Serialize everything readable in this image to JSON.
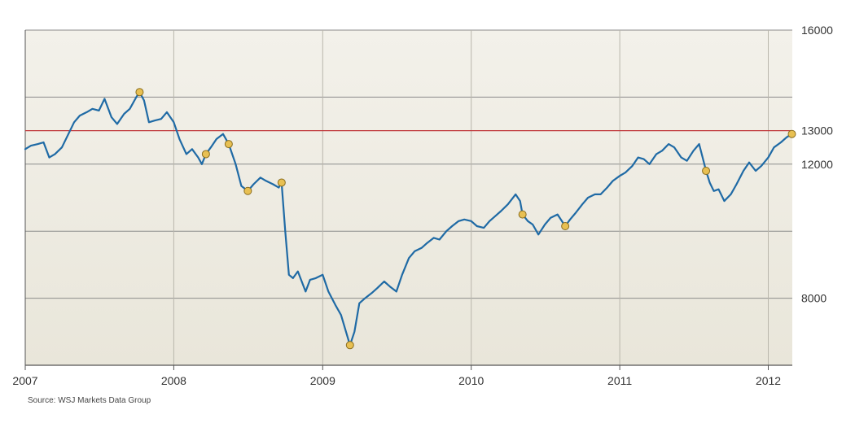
{
  "chart_data": {
    "type": "line",
    "x_type": "date",
    "xlim": [
      "2007-01-01",
      "2012-02-29"
    ],
    "ylim": [
      6000,
      16000
    ],
    "x_tick_labels": [
      "2007",
      "2008",
      "2009",
      "2010",
      "2011",
      "2012"
    ],
    "x_tick_dates": [
      "2007-01-01",
      "2008-01-01",
      "2009-01-01",
      "2010-01-01",
      "2011-01-01",
      "2012-01-01"
    ],
    "y_gridlines": [
      8000,
      10000,
      12000,
      14000
    ],
    "y_tick_labels": [
      {
        "value": 16000,
        "label": "16000"
      },
      {
        "value": 13000,
        "label": "13000"
      },
      {
        "value": 12000,
        "label": "12000"
      },
      {
        "value": 8000,
        "label": "8000"
      }
    ],
    "reference_line": {
      "value": 13000,
      "color": "#c0393b"
    },
    "grid": true,
    "colors": {
      "line": "#1f6aa5",
      "marker_fill": "#e8c052",
      "marker_stroke": "#8a6d1e",
      "plot_bg_top": "#f3f1ea",
      "plot_bg_bottom": "#e9e6da",
      "grid": "#8c8c8c"
    },
    "series": [
      {
        "x": [
          "2007-01-01",
          "2007-01-15",
          "2007-02-01",
          "2007-02-15",
          "2007-03-01",
          "2007-03-15",
          "2007-04-01",
          "2007-04-15",
          "2007-05-01",
          "2007-05-15",
          "2007-06-01",
          "2007-06-15",
          "2007-07-01",
          "2007-07-15",
          "2007-08-01",
          "2007-08-15",
          "2007-09-01",
          "2007-09-15",
          "2007-10-01",
          "2007-10-09",
          "2007-10-20",
          "2007-11-01",
          "2007-11-15",
          "2007-12-01",
          "2007-12-15",
          "2008-01-01",
          "2008-01-15",
          "2008-02-01",
          "2008-02-15",
          "2008-03-01",
          "2008-03-10",
          "2008-03-20",
          "2008-04-01",
          "2008-04-15",
          "2008-05-01",
          "2008-05-15",
          "2008-06-01",
          "2008-06-15",
          "2008-07-01",
          "2008-07-15",
          "2008-08-01",
          "2008-08-15",
          "2008-09-01",
          "2008-09-15",
          "2008-09-22",
          "2008-10-01",
          "2008-10-10",
          "2008-10-20",
          "2008-11-01",
          "2008-11-20",
          "2008-12-01",
          "2008-12-15",
          "2009-01-01",
          "2009-01-15",
          "2009-02-01",
          "2009-02-15",
          "2009-03-09",
          "2009-03-20",
          "2009-04-01",
          "2009-04-15",
          "2009-05-01",
          "2009-05-15",
          "2009-06-01",
          "2009-06-15",
          "2009-07-01",
          "2009-07-15",
          "2009-08-01",
          "2009-08-15",
          "2009-09-01",
          "2009-09-15",
          "2009-10-01",
          "2009-10-15",
          "2009-11-01",
          "2009-11-15",
          "2009-12-01",
          "2009-12-15",
          "2010-01-01",
          "2010-01-15",
          "2010-02-01",
          "2010-02-15",
          "2010-03-01",
          "2010-03-15",
          "2010-04-01",
          "2010-04-20",
          "2010-05-01",
          "2010-05-07",
          "2010-05-20",
          "2010-06-01",
          "2010-06-15",
          "2010-07-01",
          "2010-07-15",
          "2010-08-01",
          "2010-08-20",
          "2010-09-01",
          "2010-09-15",
          "2010-10-01",
          "2010-10-15",
          "2010-11-01",
          "2010-11-15",
          "2010-12-01",
          "2010-12-15",
          "2011-01-01",
          "2011-01-15",
          "2011-02-01",
          "2011-02-15",
          "2011-03-01",
          "2011-03-15",
          "2011-04-01",
          "2011-04-15",
          "2011-05-01",
          "2011-05-15",
          "2011-06-01",
          "2011-06-15",
          "2011-07-01",
          "2011-07-15",
          "2011-08-01",
          "2011-08-10",
          "2011-08-20",
          "2011-09-01",
          "2011-09-15",
          "2011-10-01",
          "2011-10-15",
          "2011-11-01",
          "2011-11-15",
          "2011-12-01",
          "2011-12-15",
          "2012-01-01",
          "2012-01-15",
          "2012-02-01",
          "2012-02-15",
          "2012-02-28"
        ],
        "y": [
          12450,
          12550,
          12600,
          12650,
          12200,
          12300,
          12500,
          12850,
          13250,
          13450,
          13550,
          13650,
          13600,
          13950,
          13400,
          13200,
          13500,
          13650,
          14000,
          14150,
          13900,
          13250,
          13300,
          13350,
          13550,
          13250,
          12750,
          12300,
          12450,
          12200,
          12000,
          12300,
          12500,
          12750,
          12900,
          12600,
          12000,
          11350,
          11200,
          11400,
          11600,
          11500,
          11400,
          11300,
          11450,
          10000,
          8700,
          8600,
          8800,
          8200,
          8550,
          8600,
          8700,
          8200,
          7800,
          7500,
          6600,
          7000,
          7850,
          8000,
          8150,
          8300,
          8500,
          8350,
          8200,
          8700,
          9200,
          9400,
          9500,
          9650,
          9800,
          9750,
          10000,
          10150,
          10300,
          10350,
          10300,
          10150,
          10100,
          10300,
          10450,
          10600,
          10800,
          11100,
          10900,
          10500,
          10300,
          10200,
          9900,
          10200,
          10400,
          10500,
          10150,
          10350,
          10550,
          10800,
          11000,
          11100,
          11100,
          11300,
          11500,
          11650,
          11750,
          11950,
          12200,
          12150,
          12000,
          12300,
          12400,
          12600,
          12500,
          12200,
          12100,
          12400,
          12600,
          11800,
          11450,
          11200,
          11250,
          10900,
          11100,
          11400,
          11800,
          12050,
          11800,
          11950,
          12200,
          12500,
          12650,
          12800,
          12900
        ]
      }
    ],
    "markers": [
      {
        "x": "2007-10-09",
        "y": 14150
      },
      {
        "x": "2008-03-20",
        "y": 12300
      },
      {
        "x": "2008-05-15",
        "y": 12600
      },
      {
        "x": "2008-07-01",
        "y": 11200
      },
      {
        "x": "2008-09-22",
        "y": 11450
      },
      {
        "x": "2009-03-09",
        "y": 6600
      },
      {
        "x": "2010-05-07",
        "y": 10500
      },
      {
        "x": "2010-08-20",
        "y": 10150
      },
      {
        "x": "2011-08-01",
        "y": 11800
      },
      {
        "x": "2012-02-28",
        "y": 12900
      }
    ]
  },
  "source_note": "Source: WSJ Markets Data Group"
}
